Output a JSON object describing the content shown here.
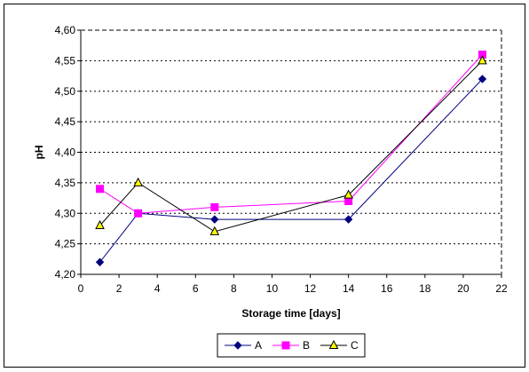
{
  "chart_data": {
    "type": "line",
    "title": "",
    "xlabel": "Storage time [days]",
    "ylabel": "pH",
    "xlim": [
      0,
      22
    ],
    "ylim": [
      4.2,
      4.6
    ],
    "xticks": [
      "0",
      "2",
      "4",
      "6",
      "8",
      "10",
      "12",
      "14",
      "16",
      "18",
      "20",
      "22"
    ],
    "yticks": [
      "4,20",
      "4,25",
      "4,30",
      "4,35",
      "4,40",
      "4,45",
      "4,50",
      "4,55",
      "4,60"
    ],
    "grid": "horizontal dotted",
    "legend_position": "bottom",
    "series": [
      {
        "name": "A",
        "color": "#000080",
        "marker": "diamond",
        "x": [
          1,
          3,
          7,
          14,
          21
        ],
        "values": [
          4.22,
          4.3,
          4.29,
          4.29,
          4.52
        ]
      },
      {
        "name": "B",
        "color": "#FF00FF",
        "marker": "square",
        "x": [
          1,
          3,
          7,
          14,
          21
        ],
        "values": [
          4.34,
          4.3,
          4.31,
          4.32,
          4.56
        ]
      },
      {
        "name": "C",
        "color": "#FFFF00",
        "line_color": "#000000",
        "marker": "triangle",
        "x": [
          1,
          3,
          7,
          14,
          21
        ],
        "values": [
          4.28,
          4.35,
          4.27,
          4.33,
          4.55
        ]
      }
    ]
  }
}
